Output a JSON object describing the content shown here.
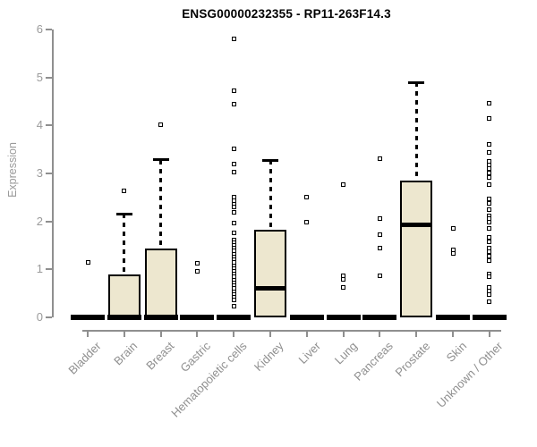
{
  "page": {
    "background_color": "#ffffff"
  },
  "chart_data": {
    "type": "boxplot",
    "title": "ENSG00000232355 - RP11-263F14.3",
    "xlabel": "",
    "ylabel": "Expression",
    "ylim": [
      0,
      6
    ],
    "yticks": [
      0,
      1,
      2,
      3,
      4,
      5,
      6
    ],
    "grid": "off",
    "legend": "none",
    "categories": [
      "Bladder",
      "Brain",
      "Breast",
      "Gastric",
      "Hematopoietic cells",
      "Kidney",
      "Liver",
      "Lung",
      "Pancreas",
      "Prostate",
      "Skin",
      "Unknown / Other"
    ],
    "boxes": [
      {
        "category": "Bladder",
        "whisker_low": 0,
        "q1": 0,
        "median": 0,
        "q3": 0,
        "whisker_high": 0,
        "outliers": [
          1.15
        ]
      },
      {
        "category": "Brain",
        "whisker_low": 0,
        "q1": 0,
        "median": 0,
        "q3": 0.9,
        "whisker_high": 2.16,
        "outliers": [
          2.64
        ]
      },
      {
        "category": "Breast",
        "whisker_low": 0,
        "q1": 0,
        "median": 0,
        "q3": 1.43,
        "whisker_high": 3.28,
        "outliers": [
          4.02
        ]
      },
      {
        "category": "Gastric",
        "whisker_low": 0,
        "q1": 0,
        "median": 0,
        "q3": 0,
        "whisker_high": 0,
        "outliers": [
          1.13,
          0.96
        ]
      },
      {
        "category": "Hematopoietic cells",
        "whisker_low": 0,
        "q1": 0,
        "median": 0,
        "q3": 0,
        "whisker_high": 0,
        "outliers": [
          5.81,
          4.73,
          4.45,
          3.52,
          3.2,
          3.02,
          2.5,
          2.44,
          2.36,
          2.3,
          2.18,
          1.97,
          1.77,
          1.62,
          1.56,
          1.5,
          1.44,
          1.38,
          1.32,
          1.26,
          1.2,
          1.14,
          1.08,
          1.02,
          0.96,
          0.9,
          0.84,
          0.78,
          0.72,
          0.66,
          0.6,
          0.54,
          0.48,
          0.42,
          0.37,
          0.24
        ]
      },
      {
        "category": "Kidney",
        "whisker_low": 0,
        "q1": 0,
        "median": 0.6,
        "q3": 1.83,
        "whisker_high": 3.27,
        "outliers": []
      },
      {
        "category": "Liver",
        "whisker_low": 0,
        "q1": 0,
        "median": 0,
        "q3": 0,
        "whisker_high": 0,
        "outliers": [
          2.51,
          1.99
        ]
      },
      {
        "category": "Lung",
        "whisker_low": 0,
        "q1": 0,
        "median": 0,
        "q3": 0,
        "whisker_high": 0,
        "outliers": [
          2.76,
          0.87,
          0.8,
          0.62
        ]
      },
      {
        "category": "Pancreas",
        "whisker_low": 0,
        "q1": 0,
        "median": 0,
        "q3": 0,
        "whisker_high": 0,
        "outliers": [
          3.31,
          2.06,
          1.73,
          1.45,
          0.86
        ]
      },
      {
        "category": "Prostate",
        "whisker_low": 0,
        "q1": 0,
        "median": 1.92,
        "q3": 2.85,
        "whisker_high": 4.9,
        "outliers": []
      },
      {
        "category": "Skin",
        "whisker_low": 0,
        "q1": 0,
        "median": 0,
        "q3": 0,
        "whisker_high": 0,
        "outliers": [
          1.86,
          1.4,
          1.34
        ]
      },
      {
        "category": "Unknown / Other",
        "whisker_low": 0,
        "q1": 0,
        "median": 0,
        "q3": 0,
        "whisker_high": 0,
        "outliers": [
          4.47,
          4.15,
          3.61,
          3.43,
          3.25,
          3.18,
          3.1,
          3.0,
          2.92,
          2.77,
          2.47,
          2.38,
          2.25,
          2.12,
          2.05,
          1.98,
          1.86,
          1.66,
          1.57,
          1.45,
          1.37,
          1.28,
          1.18,
          0.91,
          0.85,
          0.63,
          0.55,
          0.47,
          0.32
        ]
      }
    ],
    "colors": {
      "box_fill": "#EDE7CF",
      "box_border": "#000000",
      "median": "#000000",
      "outlier_border": "#000000",
      "axis": "#8F8F8F",
      "tick_label": "#9A9A9A",
      "title": "#000000"
    }
  }
}
